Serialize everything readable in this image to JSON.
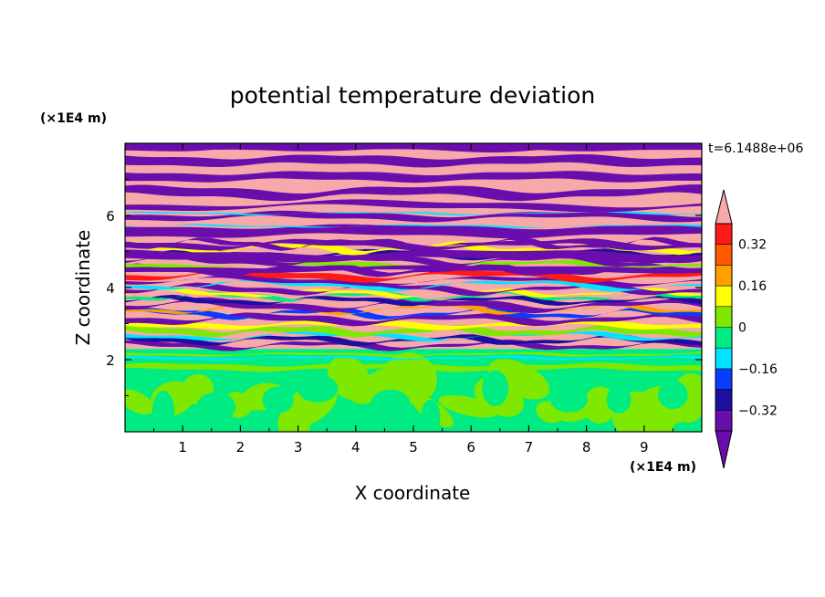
{
  "chart_data": {
    "type": "heatmap",
    "title": "potential temperature deviation",
    "xlabel": "X coordinate",
    "ylabel": "Z coordinate",
    "x_unit": "(×1E4 m)",
    "y_unit": "(×1E4 m)",
    "time_label": "t=6.1488e+06",
    "xlim": [
      0,
      10
    ],
    "ylim": [
      0,
      8
    ],
    "x_ticks": [
      1,
      2,
      3,
      4,
      5,
      6,
      7,
      8,
      9
    ],
    "y_ticks": [
      2,
      4,
      6
    ],
    "colorbar": {
      "levels": [
        -0.4,
        -0.32,
        -0.24,
        -0.16,
        -0.08,
        0,
        0.08,
        0.16,
        0.24,
        0.32,
        0.4
      ],
      "labels": [
        "0.32",
        "0.16",
        "0",
        "−0.16",
        "−0.32"
      ],
      "label_values": [
        0.32,
        0.16,
        0,
        -0.16,
        -0.32
      ],
      "colors": [
        "#6a0dad",
        "#1c0fa0",
        "#0a3cff",
        "#00e5ff",
        "#00ec82",
        "#7fe800",
        "#ffff00",
        "#ffa000",
        "#ff5a00",
        "#ff1a1a"
      ],
      "over_color": "#f7a8a8",
      "under_color": "#6a0dad"
    },
    "regions": [
      {
        "z_range": [
          0,
          1.8
        ],
        "description": "lower layer",
        "colors": [
          "#00ec82",
          "#7fe800"
        ]
      },
      {
        "z_range": [
          1.8,
          2.3
        ],
        "description": "transition band",
        "colors": [
          "#00ec82"
        ]
      },
      {
        "z_range": [
          2.3,
          4.5
        ],
        "description": "turbulent layer",
        "colors": [
          "#6a0dad",
          "#1c0fa0",
          "#0a3cff",
          "#00e5ff",
          "#7fe800",
          "#ffff00",
          "#ffa000",
          "#f7a8a8"
        ]
      },
      {
        "z_range": [
          4.5,
          8
        ],
        "description": "upper layer stripes",
        "colors": [
          "#6a0dad",
          "#f7a8a8"
        ]
      }
    ]
  }
}
